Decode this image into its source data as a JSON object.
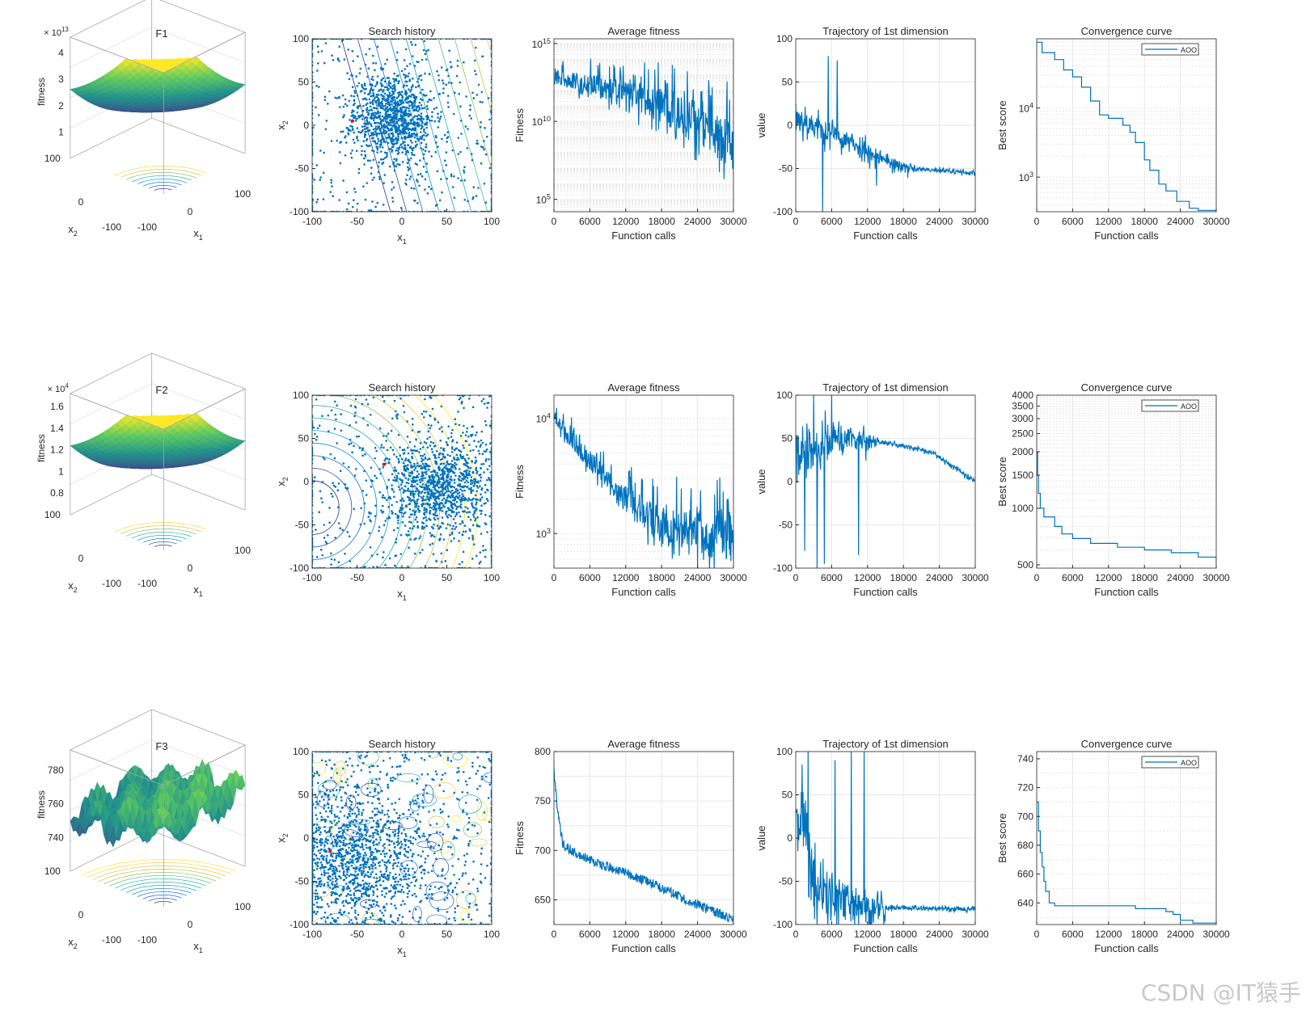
{
  "watermark": "CSDN @IT猿手",
  "colors": {
    "line": "#0072BD",
    "grid": "#e6e6e6",
    "axis": "#262626",
    "box": "#a6a6a6",
    "red": "#e60000"
  },
  "chart_data": [
    {
      "name": "F1",
      "surface": {
        "type": "surface",
        "title": "F1",
        "xlabel": "x1",
        "ylabel": "x2",
        "zlabel": "fitness",
        "x_ticks": [
          "-100",
          "0",
          "100"
        ],
        "y_ticks": [
          "-100",
          "0",
          "100"
        ],
        "z_ticks": [
          "1",
          "2",
          "3",
          "4"
        ],
        "exponent_base": "× 10",
        "exponent_sup": "13",
        "shape": "bowl"
      },
      "search": {
        "type": "scatter",
        "title": "Search history",
        "xlabel": "x1",
        "ylabel": "x2",
        "xlim": [
          -100,
          100
        ],
        "ylim": [
          -100,
          100
        ],
        "x_ticks": [
          "-100",
          "-50",
          "0",
          "50",
          "100"
        ],
        "y_ticks": [
          "-100",
          "-50",
          "0",
          "50",
          "100"
        ],
        "cluster_center": [
          -10,
          10
        ],
        "cluster_spread": [
          22,
          24
        ],
        "best": [
          -55,
          5
        ],
        "contour": "diagonal"
      },
      "avg_fitness": {
        "type": "line",
        "title": "Average fitness",
        "xlabel": "Function calls",
        "ylabel": "Fitness",
        "yscale": "log",
        "xlim": [
          0,
          30000
        ],
        "ylim_exp": [
          4.2,
          15.3
        ],
        "x_ticks": [
          "0",
          "6000",
          "12000",
          "18000",
          "24000",
          "30000"
        ],
        "y_ticks": [
          {
            "exp": 5,
            "label": "10",
            "sup": "5"
          },
          {
            "exp": 10,
            "label": "10",
            "sup": "10"
          },
          {
            "exp": 15,
            "label": "10",
            "sup": "15"
          }
        ],
        "trend_exp": [
          [
            0,
            12.7
          ],
          [
            0.3,
            11.8
          ],
          [
            0.6,
            10.7
          ],
          [
            1,
            8
          ]
        ],
        "noise": 0.9,
        "noise_grow": 2.5
      },
      "trajectory": {
        "type": "line",
        "title": "Trajectory of 1st dimension",
        "xlabel": "Function calls",
        "ylabel": "value",
        "xlim": [
          0,
          30000
        ],
        "ylim": [
          -100,
          100
        ],
        "x_ticks": [
          "0",
          "6000",
          "12000",
          "18000",
          "24000",
          "30000"
        ],
        "y_ticks": [
          "-100",
          "-50",
          "0",
          "50",
          "100"
        ],
        "trend": [
          [
            0,
            10
          ],
          [
            0.1,
            0
          ],
          [
            0.3,
            -20
          ],
          [
            0.6,
            -50
          ],
          [
            1,
            -55
          ]
        ],
        "noise": 18,
        "noise_end": 3,
        "end_fraction": 0.65,
        "spikes": [
          [
            0.18,
            80
          ],
          [
            0.23,
            75
          ],
          [
            0.15,
            -100
          ],
          [
            0.45,
            -70
          ]
        ]
      },
      "convergence": {
        "type": "line",
        "title": "Convergence curve",
        "xlabel": "Function calls",
        "ylabel": "Best score",
        "yscale": "log",
        "legend": "AOO",
        "legend_position": "top-right",
        "xlim": [
          0,
          30000
        ],
        "ylim_exp": [
          2.5,
          5.0
        ],
        "x_ticks": [
          "0",
          "6000",
          "12000",
          "18000",
          "24000",
          "30000"
        ],
        "y_ticks": [
          {
            "exp": 3,
            "label": "10",
            "sup": "3"
          },
          {
            "exp": 4,
            "label": "10",
            "sup": "4"
          }
        ],
        "steps_exp": [
          [
            0,
            4.95
          ],
          [
            0.03,
            4.8
          ],
          [
            0.1,
            4.7
          ],
          [
            0.15,
            4.55
          ],
          [
            0.2,
            4.45
          ],
          [
            0.25,
            4.3
          ],
          [
            0.3,
            4.1
          ],
          [
            0.35,
            3.9
          ],
          [
            0.4,
            3.85
          ],
          [
            0.48,
            3.75
          ],
          [
            0.52,
            3.65
          ],
          [
            0.55,
            3.5
          ],
          [
            0.6,
            3.25
          ],
          [
            0.63,
            3.1
          ],
          [
            0.68,
            2.9
          ],
          [
            0.72,
            2.8
          ],
          [
            0.78,
            2.65
          ],
          [
            0.85,
            2.55
          ],
          [
            0.9,
            2.52
          ],
          [
            1,
            2.5
          ]
        ]
      }
    },
    {
      "name": "F2",
      "surface": {
        "type": "surface",
        "title": "F2",
        "xlabel": "x1",
        "ylabel": "x2",
        "zlabel": "fitness",
        "x_ticks": [
          "-100",
          "0",
          "100"
        ],
        "y_ticks": [
          "-100",
          "0",
          "100"
        ],
        "z_ticks": [
          "0.8",
          "1",
          "1.2",
          "1.4",
          "1.6"
        ],
        "exponent_base": "× 10",
        "exponent_sup": "4",
        "shape": "bowl"
      },
      "search": {
        "type": "scatter",
        "title": "Search history",
        "xlabel": "x1",
        "ylabel": "x2",
        "xlim": [
          -100,
          100
        ],
        "ylim": [
          -100,
          100
        ],
        "x_ticks": [
          "-100",
          "-50",
          "0",
          "50",
          "100"
        ],
        "y_ticks": [
          "-100",
          "-50",
          "0",
          "50",
          "100"
        ],
        "cluster_center": [
          40,
          -5
        ],
        "cluster_spread": [
          30,
          28
        ],
        "best": [
          -20,
          20
        ],
        "contour": "circular"
      },
      "avg_fitness": {
        "type": "line",
        "title": "Average fitness",
        "xlabel": "Function calls",
        "ylabel": "Fitness",
        "yscale": "log",
        "xlim": [
          0,
          30000
        ],
        "ylim_exp": [
          2.7,
          4.2
        ],
        "x_ticks": [
          "0",
          "6000",
          "12000",
          "18000",
          "24000",
          "30000"
        ],
        "y_ticks": [
          {
            "exp": 3,
            "label": "10",
            "sup": "3"
          },
          {
            "exp": 4,
            "label": "10",
            "sup": "4"
          }
        ],
        "trend_exp": [
          [
            0,
            4.0
          ],
          [
            0.3,
            3.4
          ],
          [
            0.6,
            3.0
          ],
          [
            1,
            2.9
          ]
        ],
        "noise": 0.12,
        "noise_grow": 3
      },
      "trajectory": {
        "type": "line",
        "title": "Trajectory of 1st dimension",
        "xlabel": "Function calls",
        "ylabel": "value",
        "xlim": [
          0,
          30000
        ],
        "ylim": [
          -100,
          100
        ],
        "x_ticks": [
          "0",
          "6000",
          "12000",
          "18000",
          "24000",
          "30000"
        ],
        "y_ticks": [
          "-100",
          "-50",
          "0",
          "50",
          "100"
        ],
        "trend": [
          [
            0,
            30
          ],
          [
            0.2,
            50
          ],
          [
            0.5,
            45
          ],
          [
            0.75,
            35
          ],
          [
            1,
            0
          ]
        ],
        "noise": 25,
        "noise_end": 3,
        "end_fraction": 0.45,
        "spikes": [
          [
            0.05,
            -80
          ],
          [
            0.12,
            -100
          ],
          [
            0.16,
            -95
          ],
          [
            0.35,
            -85
          ],
          [
            0.1,
            100
          ],
          [
            0.2,
            100
          ]
        ]
      },
      "convergence": {
        "type": "line",
        "title": "Convergence curve",
        "xlabel": "Function calls",
        "ylabel": "Best score",
        "yscale": "log",
        "legend": "AOO",
        "legend_position": "top-right",
        "xlim": [
          0,
          30000
        ],
        "ylim_val": [
          480,
          4000
        ],
        "x_ticks": [
          "0",
          "6000",
          "12000",
          "18000",
          "24000",
          "30000"
        ],
        "y_tick_values": [
          500,
          1000,
          1500,
          2000,
          2500,
          3000,
          3500,
          4000
        ],
        "y_tick_labels": [
          "500",
          "1000",
          "1500",
          "2000",
          "2500",
          "3000",
          "3500",
          "4000"
        ],
        "steps_val": [
          [
            0,
            2000
          ],
          [
            0.005,
            1500
          ],
          [
            0.01,
            1200
          ],
          [
            0.02,
            1000
          ],
          [
            0.04,
            900
          ],
          [
            0.1,
            800
          ],
          [
            0.14,
            730
          ],
          [
            0.2,
            690
          ],
          [
            0.3,
            650
          ],
          [
            0.45,
            620
          ],
          [
            0.6,
            600
          ],
          [
            0.75,
            580
          ],
          [
            0.9,
            550
          ],
          [
            1,
            510
          ]
        ]
      }
    },
    {
      "name": "F3",
      "surface": {
        "type": "surface",
        "title": "F3",
        "xlabel": "x1",
        "ylabel": "x2",
        "zlabel": "fitness",
        "x_ticks": [
          "-100",
          "0",
          "100"
        ],
        "y_ticks": [
          "-100",
          "0",
          "100"
        ],
        "z_ticks": [
          "740",
          "760",
          "780"
        ],
        "exponent_base": "",
        "exponent_sup": "",
        "shape": "rugged"
      },
      "search": {
        "type": "scatter",
        "title": "Search history",
        "xlabel": "x1",
        "ylabel": "x2",
        "xlim": [
          -100,
          100
        ],
        "ylim": [
          -100,
          100
        ],
        "x_ticks": [
          "-100",
          "-50",
          "0",
          "50",
          "100"
        ],
        "y_ticks": [
          "-100",
          "-50",
          "0",
          "50",
          "100"
        ],
        "cluster_center": [
          -60,
          -25
        ],
        "cluster_spread": [
          45,
          40
        ],
        "best": [
          -80,
          -15
        ],
        "contour": "rugged"
      },
      "avg_fitness": {
        "type": "line",
        "title": "Average fitness",
        "xlabel": "Function calls",
        "ylabel": "Fitness",
        "yscale": "linear",
        "xlim": [
          0,
          30000
        ],
        "ylim": [
          625,
          800
        ],
        "x_ticks": [
          "0",
          "6000",
          "12000",
          "18000",
          "24000",
          "30000"
        ],
        "y_tick_values": [
          650,
          700,
          750,
          800
        ],
        "y_tick_labels": [
          "650",
          "700",
          "750",
          "800"
        ],
        "trend": [
          [
            0,
            780
          ],
          [
            0.02,
            740
          ],
          [
            0.05,
            705
          ],
          [
            0.2,
            690
          ],
          [
            0.5,
            670
          ],
          [
            0.8,
            645
          ],
          [
            1,
            630
          ]
        ],
        "noise": 5,
        "noise_grow": 1
      },
      "trajectory": {
        "type": "line",
        "title": "Trajectory of 1st dimension",
        "xlabel": "Function calls",
        "ylabel": "value",
        "xlim": [
          0,
          30000
        ],
        "ylim": [
          -100,
          100
        ],
        "x_ticks": [
          "0",
          "6000",
          "12000",
          "18000",
          "24000",
          "30000"
        ],
        "y_ticks": [
          "-100",
          "-50",
          "0",
          "50",
          "100"
        ],
        "trend": [
          [
            0,
            40
          ],
          [
            0.05,
            20
          ],
          [
            0.1,
            -60
          ],
          [
            0.3,
            -80
          ],
          [
            1,
            -82
          ]
        ],
        "noise": 45,
        "noise_end": 3,
        "end_fraction": 0.5,
        "spikes": [
          [
            0.07,
            100
          ],
          [
            0.22,
            90
          ],
          [
            0.31,
            100
          ],
          [
            0.38,
            100
          ]
        ]
      },
      "convergence": {
        "type": "line",
        "title": "Convergence curve",
        "xlabel": "Function calls",
        "ylabel": "Best score",
        "yscale": "linear",
        "legend": "AOO",
        "legend_position": "top-right",
        "xlim": [
          0,
          30000
        ],
        "ylim": [
          625,
          745
        ],
        "x_ticks": [
          "0",
          "6000",
          "12000",
          "18000",
          "24000",
          "30000"
        ],
        "y_tick_values": [
          640,
          660,
          680,
          700,
          720,
          740
        ],
        "y_tick_labels": [
          "640",
          "660",
          "680",
          "700",
          "720",
          "740"
        ],
        "steps_val": [
          [
            0,
            710
          ],
          [
            0.01,
            690
          ],
          [
            0.02,
            675
          ],
          [
            0.03,
            665
          ],
          [
            0.04,
            655
          ],
          [
            0.05,
            648
          ],
          [
            0.07,
            640
          ],
          [
            0.1,
            638
          ],
          [
            0.5,
            638
          ],
          [
            0.55,
            636
          ],
          [
            0.72,
            634
          ],
          [
            0.76,
            632
          ],
          [
            0.8,
            628
          ],
          [
            0.87,
            626
          ],
          [
            1,
            626
          ]
        ]
      }
    }
  ]
}
